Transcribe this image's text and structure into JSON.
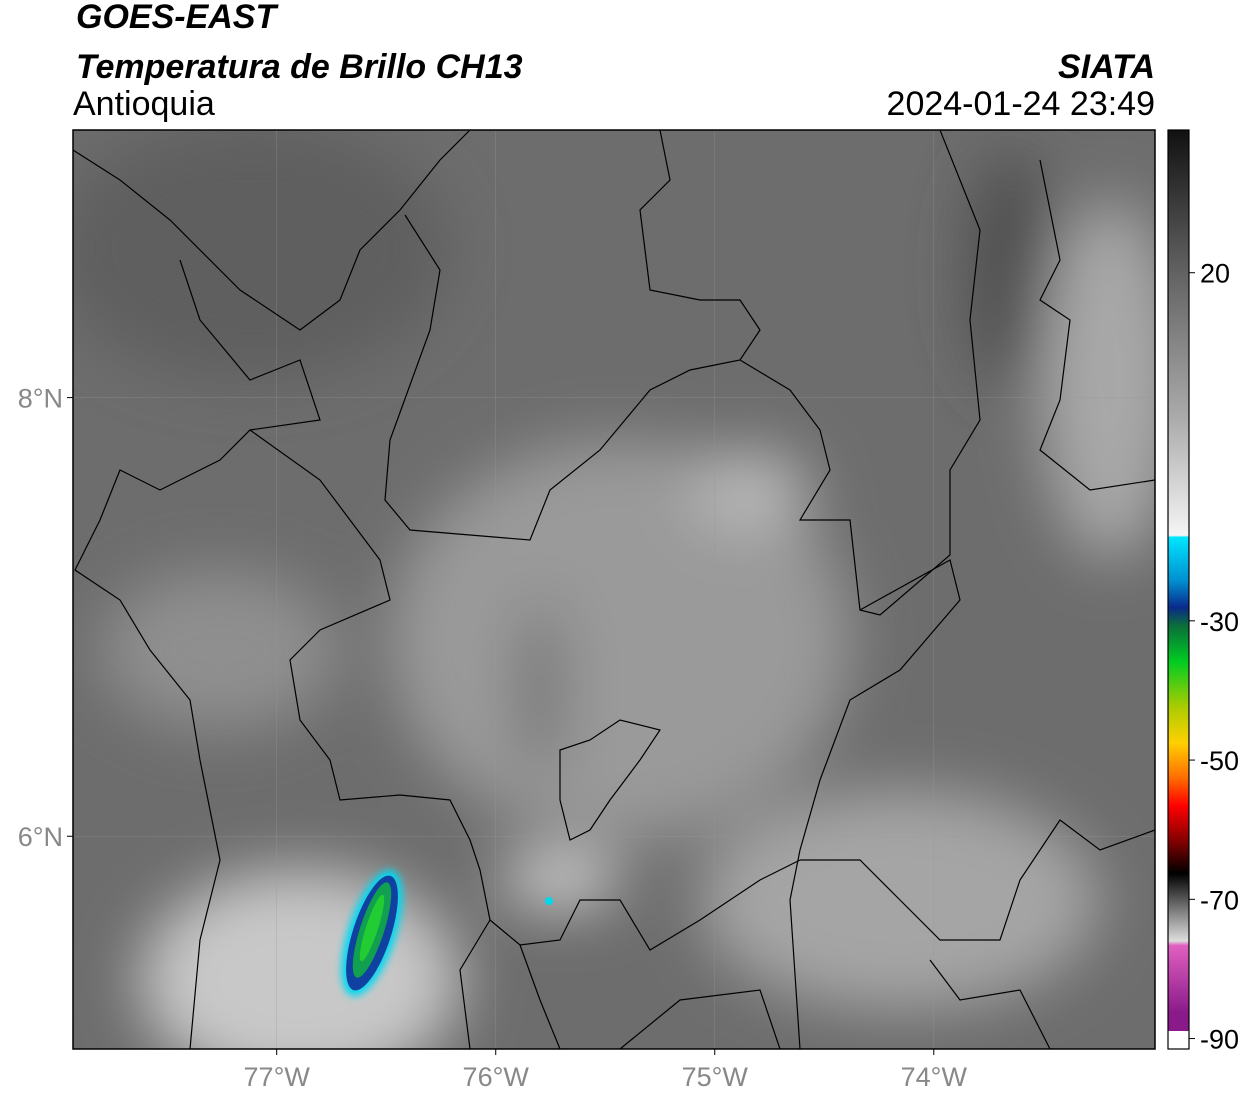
{
  "title": "GOES-EAST",
  "subtitle": "Temperatura de Brillo CH13",
  "region": "Antioquia",
  "source": "SIATA",
  "timestamp": "2024-01-24 23:49",
  "map": {
    "xlim": [
      -77.93,
      -72.99
    ],
    "ylim": [
      5.03,
      9.22
    ],
    "xticks": [
      {
        "value": -77,
        "label": "77°W"
      },
      {
        "value": -76,
        "label": "76°W"
      },
      {
        "value": -75,
        "label": "75°W"
      },
      {
        "value": -74,
        "label": "74°W"
      }
    ],
    "yticks": [
      {
        "value": 8,
        "label": "8°N"
      },
      {
        "value": 6,
        "label": "6°N"
      }
    ],
    "grid": true
  },
  "colorbar": {
    "lim": [
      -91.5,
      40.5
    ],
    "ticks": [
      20,
      -30,
      -50,
      -70,
      -90
    ]
  }
}
